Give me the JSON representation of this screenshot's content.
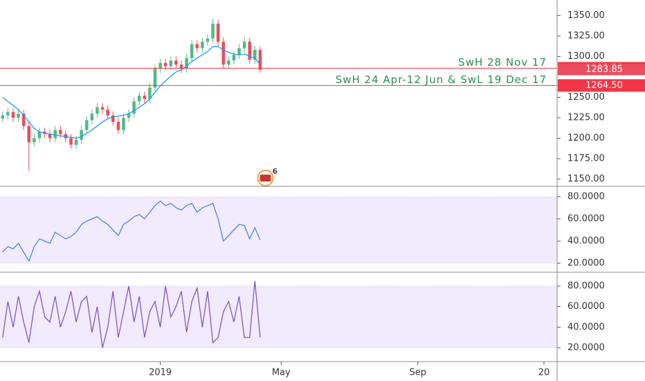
{
  "chart_data": [
    {
      "type": "candlestick",
      "x": [
        0,
        1,
        2,
        3,
        4,
        5,
        6,
        7,
        8,
        9,
        10,
        11,
        12,
        13,
        14,
        15,
        16,
        17,
        18,
        19,
        20,
        21,
        22,
        23,
        24,
        25,
        26,
        27,
        28,
        29,
        30,
        31,
        32,
        33,
        34,
        35,
        36,
        37,
        38,
        39,
        40,
        41,
        42,
        43,
        44,
        45,
        46,
        47,
        48,
        49
      ],
      "open": [
        1224,
        1228,
        1232,
        1225,
        1230,
        1215,
        1195,
        1200,
        1208,
        1205,
        1200,
        1210,
        1205,
        1200,
        1192,
        1198,
        1210,
        1222,
        1230,
        1238,
        1235,
        1228,
        1220,
        1210,
        1225,
        1230,
        1245,
        1252,
        1248,
        1262,
        1285,
        1292,
        1288,
        1295,
        1290,
        1285,
        1298,
        1315,
        1310,
        1318,
        1322,
        1340,
        1318,
        1290,
        1295,
        1302,
        1310,
        1318,
        1296,
        1308
      ],
      "high": [
        1233,
        1237,
        1237,
        1235,
        1235,
        1220,
        1205,
        1213,
        1213,
        1210,
        1215,
        1215,
        1210,
        1205,
        1203,
        1215,
        1227,
        1235,
        1243,
        1243,
        1240,
        1233,
        1225,
        1230,
        1235,
        1250,
        1257,
        1257,
        1267,
        1290,
        1297,
        1297,
        1300,
        1300,
        1295,
        1303,
        1320,
        1320,
        1323,
        1327,
        1346,
        1345,
        1323,
        1300,
        1307,
        1315,
        1323,
        1323,
        1313,
        1312
      ],
      "low": [
        1219,
        1223,
        1220,
        1220,
        1210,
        1160,
        1190,
        1195,
        1200,
        1195,
        1195,
        1200,
        1195,
        1187,
        1187,
        1193,
        1205,
        1217,
        1225,
        1230,
        1223,
        1215,
        1205,
        1205,
        1220,
        1225,
        1240,
        1243,
        1243,
        1257,
        1280,
        1283,
        1283,
        1285,
        1280,
        1280,
        1293,
        1305,
        1305,
        1313,
        1317,
        1313,
        1285,
        1285,
        1290,
        1297,
        1305,
        1291,
        1291,
        1280
      ],
      "close": [
        1228,
        1232,
        1225,
        1230,
        1215,
        1195,
        1200,
        1208,
        1205,
        1200,
        1210,
        1205,
        1200,
        1192,
        1198,
        1210,
        1222,
        1230,
        1238,
        1235,
        1228,
        1220,
        1210,
        1225,
        1230,
        1245,
        1252,
        1248,
        1262,
        1285,
        1292,
        1288,
        1295,
        1290,
        1285,
        1298,
        1315,
        1310,
        1318,
        1322,
        1340,
        1318,
        1290,
        1295,
        1302,
        1310,
        1318,
        1296,
        1308,
        1283.85
      ],
      "up_color": "#53b987",
      "down_color": "#eb4d5c",
      "ma": {
        "color": "#2196f3",
        "values": [
          1250,
          1245,
          1240,
          1235,
          1228,
          1220,
          1212,
          1208,
          1206,
          1205,
          1204,
          1203,
          1202,
          1201,
          1200,
          1202,
          1206,
          1210,
          1215,
          1220,
          1224,
          1226,
          1227,
          1228,
          1230,
          1234,
          1238,
          1242,
          1248,
          1256,
          1264,
          1270,
          1276,
          1281,
          1284,
          1288,
          1294,
          1298,
          1302,
          1306,
          1312,
          1312,
          1308,
          1305,
          1303,
          1302,
          1303,
          1300,
          1298,
          1290
        ]
      },
      "xlim": [
        -0.5,
        105.5
      ],
      "ylim": [
        1142,
        1369
      ],
      "yticks": [
        {
          "value": 1150,
          "label": "1150.00"
        },
        {
          "value": 1175,
          "label": "1175.00"
        },
        {
          "value": 1200,
          "label": "1200.00"
        },
        {
          "value": 1225,
          "label": "1225.00"
        },
        {
          "value": 1250,
          "label": "1250.00"
        },
        {
          "value": 1300,
          "label": "1300.00"
        },
        {
          "value": 1325,
          "label": "1325.00"
        },
        {
          "value": 1350,
          "label": "1350.00"
        }
      ],
      "levels": [
        {
          "value": 1285.56,
          "name": "SwH 28 Nov 17"
        },
        {
          "value": 1264.5,
          "value_label": "1264.50",
          "name": "SwH 24 Apr-12 Jun & SwL 19 Dec 17"
        }
      ],
      "level_color": "#f23645",
      "level_text_color": "#2e8b57",
      "events": [
        {
          "x": 50,
          "label": "6"
        }
      ]
    },
    {
      "type": "line",
      "x": [
        0,
        1,
        2,
        3,
        4,
        5,
        6,
        7,
        8,
        9,
        10,
        11,
        12,
        13,
        14,
        15,
        16,
        17,
        18,
        19,
        20,
        21,
        22,
        23,
        24,
        25,
        26,
        27,
        28,
        29,
        30,
        31,
        32,
        33,
        34,
        35,
        36,
        37,
        38,
        39,
        40,
        41,
        42,
        43,
        44,
        45,
        46,
        47,
        48,
        49
      ],
      "values": [
        30,
        35,
        33,
        38,
        30,
        22,
        35,
        42,
        40,
        38,
        48,
        45,
        42,
        44,
        48,
        55,
        58,
        60,
        62,
        58,
        55,
        50,
        45,
        55,
        58,
        62,
        64,
        60,
        66,
        72,
        76,
        72,
        74,
        70,
        68,
        72,
        74,
        66,
        70,
        72,
        74,
        60,
        40,
        45,
        50,
        55,
        54,
        42,
        52,
        41
      ],
      "color": "#4a86e8",
      "band": [
        20,
        80
      ],
      "band_color": "#f2eafd",
      "xlim": [
        -0.5,
        105.5
      ],
      "ylim": [
        12.5,
        88.75
      ],
      "yticks": [
        {
          "value": 20,
          "label": "20.0000"
        },
        {
          "value": 40,
          "label": "40.0000"
        },
        {
          "value": 60,
          "label": "60.0000"
        },
        {
          "value": 80,
          "label": "80.0000"
        }
      ]
    },
    {
      "type": "line",
      "x": [
        0,
        1,
        2,
        3,
        4,
        5,
        6,
        7,
        8,
        9,
        10,
        11,
        12,
        13,
        14,
        15,
        16,
        17,
        18,
        19,
        20,
        21,
        22,
        23,
        24,
        25,
        26,
        27,
        28,
        29,
        30,
        31,
        32,
        33,
        34,
        35,
        36,
        37,
        38,
        39,
        40,
        41,
        42,
        43,
        44,
        45,
        46,
        47,
        48,
        49
      ],
      "values": [
        30,
        65,
        40,
        70,
        45,
        25,
        60,
        75,
        50,
        45,
        70,
        40,
        55,
        75,
        45,
        65,
        70,
        35,
        60,
        20,
        40,
        75,
        30,
        55,
        80,
        45,
        70,
        30,
        55,
        65,
        40,
        80,
        50,
        60,
        75,
        35,
        65,
        78,
        40,
        75,
        25,
        30,
        55,
        65,
        45,
        70,
        30,
        30,
        85,
        30
      ],
      "color": "#7e57c2",
      "band": [
        20,
        80
      ],
      "band_color": "#f2eafd",
      "xlim": [
        -0.5,
        105.5
      ],
      "ylim": [
        6.5,
        92.8
      ],
      "yticks": [
        {
          "value": 20,
          "label": "20.0000"
        },
        {
          "value": 40,
          "label": "40.0000"
        },
        {
          "value": 60,
          "label": "60.0000"
        },
        {
          "value": 80,
          "label": "80.0000"
        }
      ],
      "xticks": [
        {
          "value": 30,
          "label": "2019"
        },
        {
          "value": 53,
          "label": "May"
        },
        {
          "value": 79,
          "label": "Sep"
        },
        {
          "value": 103,
          "label": "20"
        }
      ]
    }
  ]
}
